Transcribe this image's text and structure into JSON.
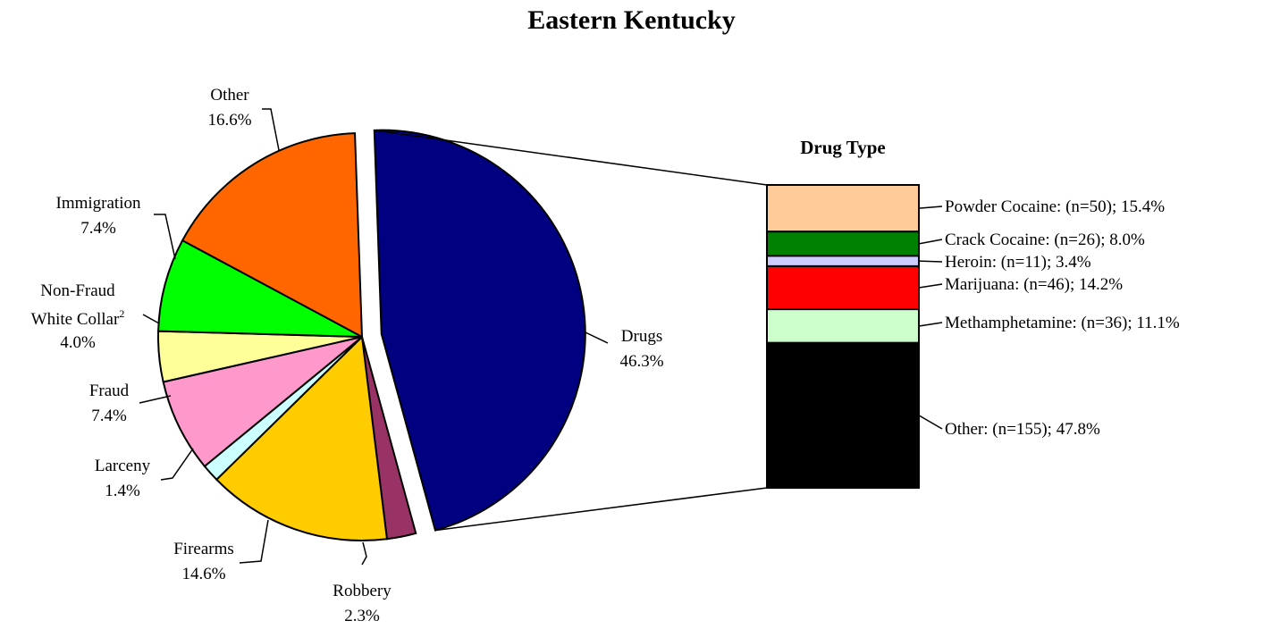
{
  "chart_data": {
    "type": "pie",
    "title": "Eastern Kentucky",
    "exploded_slice": "Drugs",
    "slices": [
      {
        "label": "Drugs",
        "value": 46.3,
        "value_text": "46.3%",
        "color": "#000080"
      },
      {
        "label": "Robbery",
        "value": 2.3,
        "value_text": "2.3%",
        "color": "#993366"
      },
      {
        "label": "Firearms",
        "value": 14.6,
        "value_text": "14.6%",
        "color": "#FFCC00"
      },
      {
        "label": "Larceny",
        "value": 1.4,
        "value_text": "1.4%",
        "color": "#CCFFFF"
      },
      {
        "label": "Fraud",
        "value": 7.4,
        "value_text": "7.4%",
        "color": "#FF99CC"
      },
      {
        "label": "Non-Fraud White Collar",
        "label_line1": "Non-Fraud",
        "label_line2": "White Collar",
        "superscript": "2",
        "value": 4.0,
        "value_text": "4.0%",
        "color": "#FFFF99"
      },
      {
        "label": "Immigration",
        "value": 7.4,
        "value_text": "7.4%",
        "color": "#00FF00"
      },
      {
        "label": "Other",
        "value": 16.6,
        "value_text": "16.6%",
        "color": "#FF6600"
      }
    ],
    "breakdown": {
      "title": "Drug Type",
      "type": "stacked-bar",
      "segments": [
        {
          "label": "Powder Cocaine:  (n=50); 15.4%",
          "value": 15.4,
          "color": "#FFCC99"
        },
        {
          "label": "Crack Cocaine:  (n=26); 8.0%",
          "value": 8.0,
          "color": "#008000"
        },
        {
          "label": "Heroin:  (n=11); 3.4%",
          "value": 3.4,
          "color": "#CCCCFF"
        },
        {
          "label": "Marijuana:  (n=46); 14.2%",
          "value": 14.2,
          "color": "#FF0000"
        },
        {
          "label": "Methamphetamine:  (n=36); 11.1%",
          "value": 11.1,
          "color": "#CCFFCC"
        },
        {
          "label": "Other:  (n=155); 47.8%",
          "value": 47.8,
          "color": "#000000"
        }
      ]
    }
  }
}
